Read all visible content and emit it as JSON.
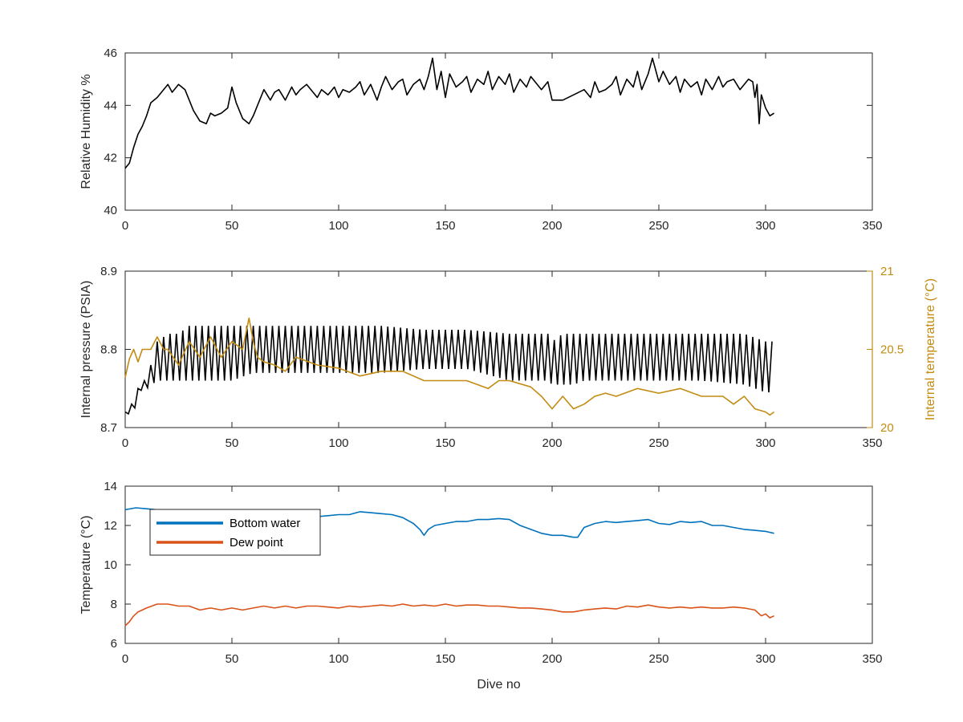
{
  "chart_data": [
    {
      "type": "line",
      "xlabel": "",
      "ylabel": "Relative Humidity %",
      "xlim": [
        0,
        350
      ],
      "ylim": [
        40,
        46
      ],
      "xticks": [
        "0",
        "50",
        "100",
        "150",
        "200",
        "250",
        "300",
        "350"
      ],
      "yticks": [
        "40",
        "42",
        "44",
        "46"
      ],
      "grid": false,
      "series": [
        {
          "color": "#000000",
          "x": [
            0,
            2,
            4,
            6,
            8,
            10,
            12,
            15,
            18,
            20,
            22,
            25,
            28,
            30,
            32,
            35,
            38,
            40,
            42,
            45,
            48,
            50,
            52,
            55,
            58,
            60,
            62,
            65,
            68,
            70,
            72,
            75,
            78,
            80,
            82,
            85,
            88,
            90,
            92,
            95,
            98,
            100,
            102,
            105,
            108,
            110,
            112,
            115,
            118,
            120,
            122,
            125,
            128,
            130,
            132,
            135,
            138,
            140,
            142,
            144,
            146,
            148,
            150,
            152,
            155,
            158,
            160,
            162,
            165,
            168,
            170,
            172,
            175,
            178,
            180,
            182,
            185,
            188,
            190,
            192,
            195,
            198,
            200,
            205,
            210,
            215,
            218,
            220,
            222,
            225,
            228,
            230,
            232,
            235,
            238,
            240,
            242,
            245,
            247,
            250,
            252,
            255,
            258,
            260,
            262,
            265,
            268,
            270,
            272,
            275,
            278,
            280,
            282,
            285,
            288,
            290,
            292,
            294,
            295,
            296,
            297,
            298,
            300,
            302,
            304
          ],
          "y": [
            41.6,
            41.8,
            42.4,
            42.9,
            43.2,
            43.6,
            44.1,
            44.3,
            44.6,
            44.8,
            44.5,
            44.8,
            44.6,
            44.2,
            43.8,
            43.4,
            43.3,
            43.7,
            43.6,
            43.7,
            43.9,
            44.7,
            44.1,
            43.5,
            43.3,
            43.6,
            44.0,
            44.6,
            44.2,
            44.5,
            44.6,
            44.2,
            44.7,
            44.4,
            44.6,
            44.8,
            44.5,
            44.3,
            44.6,
            44.4,
            44.7,
            44.3,
            44.6,
            44.5,
            44.7,
            44.9,
            44.4,
            44.8,
            44.2,
            44.7,
            45.1,
            44.6,
            44.9,
            45.0,
            44.4,
            44.8,
            45.0,
            44.6,
            45.1,
            45.8,
            44.6,
            45.3,
            44.3,
            45.2,
            44.7,
            44.9,
            45.1,
            44.5,
            45.0,
            44.8,
            45.3,
            44.6,
            45.1,
            44.8,
            45.2,
            44.5,
            45.0,
            44.7,
            45.1,
            44.9,
            44.6,
            44.9,
            44.2,
            44.2,
            44.4,
            44.6,
            44.3,
            44.9,
            44.5,
            44.6,
            44.8,
            45.1,
            44.4,
            45.0,
            44.7,
            45.3,
            44.6,
            45.2,
            45.8,
            44.9,
            45.3,
            44.8,
            45.1,
            44.5,
            45.0,
            44.7,
            44.9,
            44.4,
            45.0,
            44.6,
            45.1,
            44.7,
            44.9,
            45.0,
            44.6,
            44.8,
            45.0,
            44.9,
            44.3,
            44.8,
            43.3,
            44.4,
            43.9,
            43.6,
            43.7
          ]
        }
      ]
    },
    {
      "type": "line",
      "xlabel": "",
      "ylabel": "Internal pressure (PSIA)",
      "ylabel_right": "Internal temperature (°C)",
      "xlim": [
        0,
        350
      ],
      "ylim": [
        8.7,
        8.9
      ],
      "ylim_right": [
        20,
        21
      ],
      "xticks": [
        "0",
        "50",
        "100",
        "150",
        "200",
        "250",
        "300",
        "350"
      ],
      "yticks": [
        "8.7",
        "8.8",
        "8.9"
      ],
      "yticks_right": [
        "20",
        "20.5",
        "21"
      ],
      "grid": false,
      "series": [
        {
          "axis": "left",
          "color": "#000000",
          "oscillating": true,
          "x": [
            0,
            2,
            4,
            6,
            8,
            10,
            15,
            20,
            25,
            30,
            35,
            40,
            50,
            60,
            80,
            100,
            120,
            140,
            160,
            180,
            195,
            198,
            200,
            205,
            210,
            215,
            230,
            250,
            270,
            290,
            300,
            304
          ],
          "y_high": [
            8.72,
            8.73,
            8.73,
            8.75,
            8.76,
            8.76,
            8.81,
            8.82,
            8.82,
            8.83,
            8.83,
            8.83,
            8.83,
            8.83,
            8.83,
            8.83,
            8.83,
            8.825,
            8.825,
            8.82,
            8.82,
            8.82,
            8.81,
            8.82,
            8.82,
            8.82,
            8.82,
            8.82,
            8.82,
            8.82,
            8.81,
            8.81
          ],
          "y_low": [
            8.71,
            8.72,
            8.72,
            8.74,
            8.75,
            8.75,
            8.76,
            8.76,
            8.76,
            8.76,
            8.76,
            8.76,
            8.76,
            8.77,
            8.77,
            8.77,
            8.77,
            8.775,
            8.775,
            8.76,
            8.76,
            8.76,
            8.755,
            8.755,
            8.755,
            8.76,
            8.76,
            8.76,
            8.76,
            8.755,
            8.745,
            8.745
          ]
        },
        {
          "axis": "right",
          "color": "#c28c12",
          "x": [
            0,
            2,
            4,
            6,
            8,
            10,
            12,
            15,
            18,
            20,
            25,
            30,
            35,
            40,
            45,
            50,
            55,
            58,
            60,
            62,
            65,
            70,
            75,
            80,
            90,
            100,
            110,
            120,
            130,
            140,
            150,
            160,
            170,
            175,
            180,
            190,
            195,
            200,
            205,
            210,
            215,
            220,
            225,
            230,
            240,
            250,
            260,
            270,
            280,
            285,
            290,
            295,
            300,
            302,
            304
          ],
          "y": [
            20.32,
            20.44,
            20.5,
            20.42,
            20.5,
            20.5,
            20.5,
            20.58,
            20.5,
            20.5,
            20.4,
            20.55,
            20.45,
            20.58,
            20.45,
            20.55,
            20.5,
            20.7,
            20.55,
            20.45,
            20.42,
            20.4,
            20.36,
            20.45,
            20.4,
            20.38,
            20.33,
            20.36,
            20.36,
            20.3,
            20.3,
            20.3,
            20.25,
            20.3,
            20.3,
            20.26,
            20.2,
            20.12,
            20.2,
            20.12,
            20.15,
            20.2,
            20.22,
            20.2,
            20.25,
            20.22,
            20.25,
            20.2,
            20.2,
            20.15,
            20.2,
            20.12,
            20.1,
            20.08,
            20.1
          ]
        }
      ]
    },
    {
      "type": "line",
      "xlabel": "Dive no",
      "ylabel": "Temperature (°C)",
      "xlim": [
        0,
        350
      ],
      "ylim": [
        6,
        14
      ],
      "xticks": [
        "0",
        "50",
        "100",
        "150",
        "200",
        "250",
        "300",
        "350"
      ],
      "yticks": [
        "6",
        "8",
        "10",
        "12",
        "14"
      ],
      "grid": false,
      "legend": "top-left",
      "series": [
        {
          "name": "Bottom water",
          "color": "#0072bd",
          "x": [
            0,
            5,
            10,
            15,
            20,
            25,
            30,
            35,
            40,
            45,
            50,
            55,
            60,
            65,
            70,
            75,
            80,
            85,
            90,
            95,
            100,
            105,
            110,
            115,
            120,
            125,
            130,
            135,
            138,
            140,
            142,
            145,
            150,
            155,
            160,
            165,
            170,
            175,
            180,
            185,
            190,
            195,
            200,
            205,
            210,
            212,
            215,
            220,
            225,
            230,
            235,
            240,
            245,
            250,
            255,
            260,
            265,
            270,
            275,
            280,
            285,
            290,
            295,
            300,
            304
          ],
          "y": [
            12.8,
            12.9,
            12.85,
            12.8,
            12.7,
            12.75,
            12.7,
            12.75,
            12.6,
            12.6,
            12.5,
            12.6,
            12.45,
            12.5,
            12.5,
            12.55,
            12.5,
            12.5,
            12.45,
            12.5,
            12.55,
            12.55,
            12.7,
            12.65,
            12.6,
            12.55,
            12.4,
            12.1,
            11.8,
            11.5,
            11.8,
            12.0,
            12.1,
            12.2,
            12.2,
            12.3,
            12.3,
            12.35,
            12.3,
            12.0,
            11.8,
            11.6,
            11.5,
            11.5,
            11.4,
            11.4,
            11.9,
            12.1,
            12.2,
            12.15,
            12.2,
            12.25,
            12.3,
            12.1,
            12.05,
            12.2,
            12.15,
            12.2,
            12.0,
            12.0,
            11.9,
            11.8,
            11.75,
            11.7,
            11.6
          ]
        },
        {
          "name": "Dew point",
          "color": "#d95319",
          "x": [
            0,
            2,
            4,
            6,
            8,
            10,
            15,
            20,
            25,
            30,
            35,
            40,
            45,
            50,
            55,
            60,
            65,
            70,
            75,
            80,
            85,
            90,
            95,
            100,
            105,
            110,
            115,
            120,
            125,
            130,
            135,
            140,
            145,
            150,
            155,
            160,
            165,
            170,
            175,
            180,
            185,
            190,
            195,
            200,
            205,
            210,
            215,
            220,
            225,
            230,
            235,
            240,
            245,
            250,
            255,
            260,
            265,
            270,
            275,
            280,
            285,
            290,
            295,
            298,
            300,
            302,
            304
          ],
          "y": [
            6.9,
            7.1,
            7.4,
            7.6,
            7.7,
            7.8,
            8.0,
            8.0,
            7.9,
            7.9,
            7.7,
            7.8,
            7.7,
            7.8,
            7.7,
            7.8,
            7.9,
            7.8,
            7.9,
            7.8,
            7.9,
            7.9,
            7.85,
            7.8,
            7.9,
            7.85,
            7.9,
            7.95,
            7.9,
            8.0,
            7.9,
            7.95,
            7.9,
            8.0,
            7.9,
            7.95,
            7.95,
            7.9,
            7.9,
            7.85,
            7.8,
            7.8,
            7.75,
            7.7,
            7.6,
            7.6,
            7.7,
            7.75,
            7.8,
            7.75,
            7.9,
            7.85,
            7.95,
            7.85,
            7.8,
            7.85,
            7.8,
            7.85,
            7.8,
            7.8,
            7.85,
            7.8,
            7.7,
            7.4,
            7.5,
            7.3,
            7.4
          ]
        }
      ]
    }
  ]
}
